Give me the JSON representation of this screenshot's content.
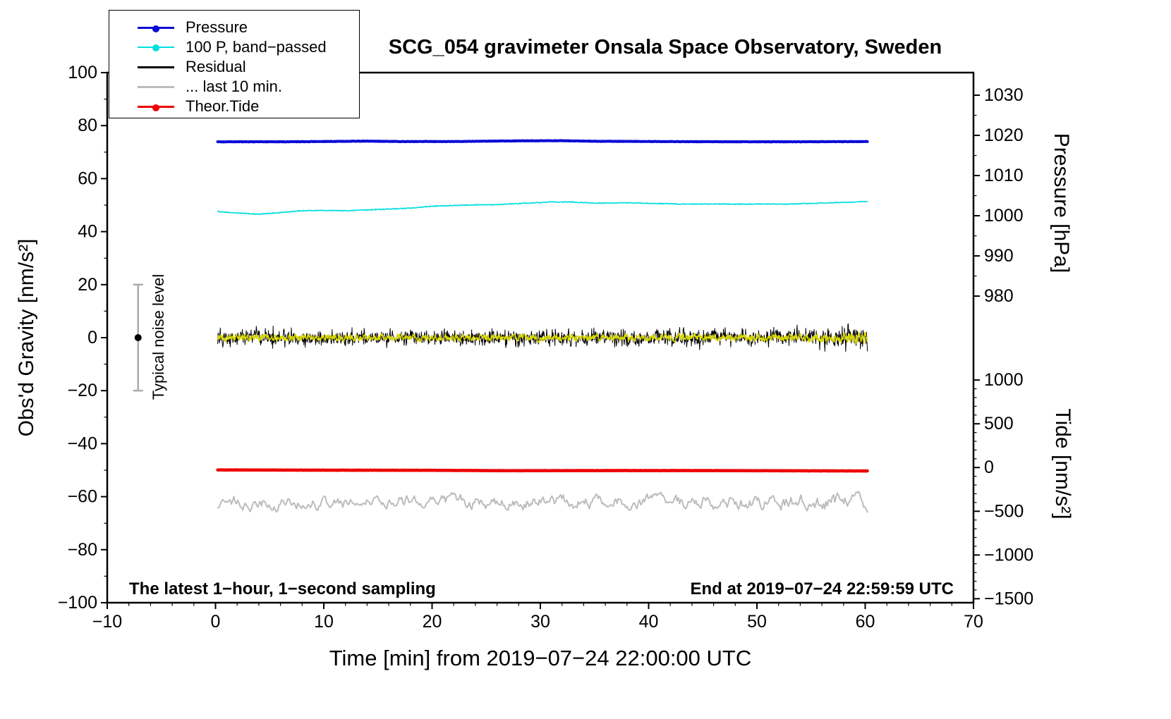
{
  "title": "SCG_054 gravimeter Onsala Space Observatory, Sweden",
  "legend": {
    "items": [
      {
        "label": "Pressure",
        "color": "#0b0bd8",
        "dot": true,
        "lw": 3
      },
      {
        "label": "100 P, band−passed",
        "color": "#00dede",
        "dot": true,
        "lw": 2
      },
      {
        "label": "Residual",
        "color": "#000000",
        "dot": false,
        "lw": 3
      },
      {
        "label": "... last 10 min.",
        "color": "#bcbcbc",
        "dot": false,
        "lw": 3
      },
      {
        "label": "Theor.Tide",
        "color": "#ee0000",
        "dot": true,
        "lw": 3
      }
    ]
  },
  "axes": {
    "left_label": "Obs'd Gravity [nm/s²]",
    "bottom_label": "Time [min] from 2019−07−24 22:00:00 UTC",
    "right_top_label": "Pressure [hPa]",
    "right_bottom_label": "Tide [nm/s²]"
  },
  "annotations": {
    "sampling_note": "The latest 1−hour, 1−second sampling",
    "end_time": "End at 2019−07−24 22:59:59 UTC",
    "noise_label": "Typical noise level"
  },
  "chart_data": {
    "type": "line",
    "title": "SCG_054 gravimeter Onsala Space Observatory, Sweden",
    "xlabel": "Time [min] from 2019−07−24 22:00:00 UTC",
    "ylabel_left": "Obs'd Gravity [nm/s²]",
    "ylabel_right_top": "Pressure [hPa]",
    "ylabel_right_bottom": "Tide [nm/s²]",
    "xlim": [
      -10,
      70
    ],
    "ylim_left": [
      -100,
      100
    ],
    "x_major_ticks": [
      -10,
      0,
      10,
      20,
      30,
      40,
      50,
      60,
      70
    ],
    "x_minor_step": 2,
    "y_major_ticks": [
      -100,
      -80,
      -60,
      -40,
      -20,
      0,
      20,
      40,
      60,
      80,
      100
    ],
    "y_minor_step": 10,
    "grid": false,
    "legend_position": "top-left",
    "pressure_axis": {
      "ticks": [
        1030,
        1020,
        1010,
        1000,
        990,
        980
      ],
      "minor_step": 5,
      "p0": 1000,
      "g0": 46.0,
      "g_per_unit": 1.516
    },
    "tide_axis": {
      "ticks": [
        1000,
        500,
        0,
        -500,
        -1000,
        -1500
      ],
      "minor_step": 100,
      "g0": -49.0,
      "g_per_unit": 0.033
    },
    "noise_marker": {
      "x": -7.15,
      "center": 0,
      "half_range": 20,
      "bar_color": "#ababab",
      "dot_color": "#000000",
      "label": "Typical noise level"
    },
    "series": [
      {
        "name": "Pressure",
        "color": "#0b0bd8",
        "width": 4,
        "kind": "smooth",
        "noise": 0.07,
        "x_range": [
          0.2,
          60.2
        ],
        "points": [
          [
            0.2,
            73.9
          ],
          [
            6,
            73.9
          ],
          [
            10,
            74.0
          ],
          [
            14,
            74.15
          ],
          [
            17,
            74.0
          ],
          [
            22,
            74.0
          ],
          [
            28,
            74.25
          ],
          [
            32,
            74.3
          ],
          [
            35,
            74.1
          ],
          [
            40,
            74.0
          ],
          [
            47,
            73.9
          ],
          [
            54,
            73.9
          ],
          [
            60.2,
            74.0
          ]
        ],
        "approx_value_hPa": 1018.4
      },
      {
        "name": "100 P, band-passed",
        "color": "#00dede",
        "width": 1.6,
        "kind": "smooth",
        "noise": 0.16,
        "x_range": [
          0.2,
          60.2
        ],
        "points": [
          [
            0.2,
            47.6
          ],
          [
            2,
            47.0
          ],
          [
            4,
            46.6
          ],
          [
            6,
            47.2
          ],
          [
            8,
            47.9
          ],
          [
            10,
            48.0
          ],
          [
            12,
            47.9
          ],
          [
            14,
            48.2
          ],
          [
            16,
            48.5
          ],
          [
            18,
            48.9
          ],
          [
            20,
            49.6
          ],
          [
            23,
            50.0
          ],
          [
            26,
            50.2
          ],
          [
            29,
            50.8
          ],
          [
            31,
            51.2
          ],
          [
            33,
            51.2
          ],
          [
            35,
            50.7
          ],
          [
            38,
            50.9
          ],
          [
            40,
            50.7
          ],
          [
            43,
            50.4
          ],
          [
            46,
            50.4
          ],
          [
            50,
            50.4
          ],
          [
            53,
            50.4
          ],
          [
            56,
            50.8
          ],
          [
            58,
            51.0
          ],
          [
            60.2,
            51.4
          ]
        ]
      },
      {
        "name": "Residual",
        "color": "#000000",
        "width": 1,
        "kind": "noise",
        "baseline": 0,
        "amp": 3.0,
        "n": 1500,
        "x_range": [
          0.2,
          60.2
        ],
        "spike_prob": 0.04,
        "boost_from": 56,
        "end_boost": 1.5
      },
      {
        "name": "Residual smoothed",
        "color": "#d8d800",
        "width": 1.5,
        "kind": "ar",
        "baseline": 0,
        "amp": 2.2,
        "rho": 0.45,
        "scale": 1.0,
        "clip": 3.2,
        "n": 1500,
        "x_range": [
          0.2,
          60.2
        ],
        "boost_from": 54,
        "end_boost": 1.7,
        "v0": 0
      },
      {
        "name": "Theor.Tide",
        "color": "#ee0000",
        "width": 4.5,
        "kind": "smooth",
        "noise": 0.04,
        "x_range": [
          0.2,
          60.2
        ],
        "points": [
          [
            0.2,
            -49.9
          ],
          [
            10,
            -50.0
          ],
          [
            20,
            -50.05
          ],
          [
            27,
            -50.2
          ],
          [
            35,
            -50.15
          ],
          [
            45,
            -50.15
          ],
          [
            55,
            -50.25
          ],
          [
            60.2,
            -50.3
          ]
        ],
        "approx_value_tide": 0
      },
      {
        "name": "... last 10 min.",
        "color": "#bcbcbc",
        "width": 2,
        "kind": "ar",
        "baseline": -62,
        "amp": 2.6,
        "rho": 0.72,
        "scale": 1.35,
        "clip": 5.5,
        "n": 520,
        "x_range": [
          0.2,
          60.2
        ],
        "boost_from": 42,
        "end_boost": 1.25,
        "v0": -3.2
      }
    ]
  }
}
